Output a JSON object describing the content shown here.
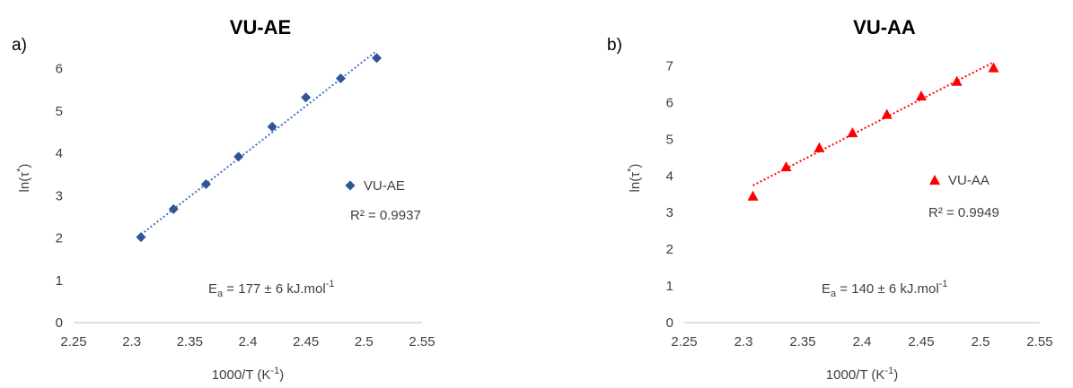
{
  "chart_data": [
    {
      "type": "scatter",
      "panel_label": "a)",
      "title": "VU-AE",
      "xlabel": {
        "text": "1000/T (K",
        "sup": "-1",
        "tail": ")"
      },
      "ylabel": {
        "text": "ln(τ",
        "sup": "*",
        "tail": ")"
      },
      "xlim": [
        2.25,
        2.55
      ],
      "ylim": [
        0,
        6.5
      ],
      "xticks": [
        "2.25",
        "2.3",
        "2.35",
        "2.4",
        "2.45",
        "2.5",
        "2.55"
      ],
      "yticks": [
        "0",
        "1",
        "2",
        "3",
        "4",
        "5",
        "6"
      ],
      "grid": false,
      "legend_position": "right",
      "series": [
        {
          "name": "VU-AE",
          "color": "#2F5597",
          "marker": "diamond",
          "x": [
            2.308,
            2.336,
            2.364,
            2.392,
            2.421,
            2.45,
            2.48,
            2.511
          ],
          "y": [
            2.02,
            2.68,
            3.27,
            3.92,
            4.63,
            5.32,
            5.77,
            6.25
          ]
        }
      ],
      "trendline": {
        "style": "dotted",
        "color": "#4472C4",
        "x": [
          2.308,
          2.511
        ],
        "y": [
          2.08,
          6.42
        ]
      },
      "r_squared_label": "R² = 0.9937",
      "annotation": {
        "prefix": "E",
        "sub": "a",
        "main": " = 177 ± 6 kJ.mol",
        "sup": "-1"
      }
    },
    {
      "type": "scatter",
      "panel_label": "b)",
      "title": "VU-AA",
      "xlabel": {
        "text": "1000/T (K",
        "sup": "-1",
        "tail": ")"
      },
      "ylabel": {
        "text": "ln(τ",
        "sup": "*",
        "tail": ")"
      },
      "xlim": [
        2.25,
        2.55
      ],
      "ylim": [
        0,
        7.5
      ],
      "xticks": [
        "2.25",
        "2.3",
        "2.35",
        "2.4",
        "2.45",
        "2.5",
        "2.55"
      ],
      "yticks": [
        "0",
        "1",
        "2",
        "3",
        "4",
        "5",
        "6",
        "7"
      ],
      "grid": false,
      "legend_position": "right",
      "series": [
        {
          "name": "VU-AA",
          "color": "#FF0000",
          "marker": "triangle",
          "x": [
            2.308,
            2.336,
            2.364,
            2.392,
            2.421,
            2.45,
            2.48,
            2.511
          ],
          "y": [
            3.45,
            4.25,
            4.77,
            5.18,
            5.68,
            6.18,
            6.58,
            6.95
          ]
        }
      ],
      "trendline": {
        "style": "dotted",
        "color": "#FF0000",
        "x": [
          2.308,
          2.511
        ],
        "y": [
          3.74,
          7.1
        ]
      },
      "r_squared_label": "R² = 0.9949",
      "annotation": {
        "prefix": "E",
        "sub": "a",
        "main": " = 140 ± 6 kJ.mol",
        "sup": "-1"
      }
    }
  ]
}
